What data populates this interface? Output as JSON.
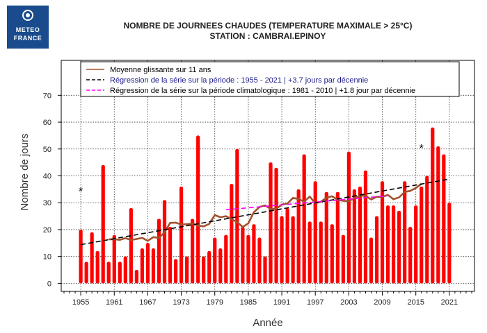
{
  "logo": {
    "line1": "METEO",
    "line2": "FRANCE",
    "color": "#1a4b8c"
  },
  "header": {
    "title_line1": "NOMBRE DE JOURNEES CHAUDES (TEMPERATURE MAXIMALE > 25°C)",
    "title_line2": "STATION : CAMBRAI.EPINOY"
  },
  "chart_data": {
    "type": "bar",
    "xlabel": "Année",
    "ylabel": "Nombre de jours",
    "ylim": [
      -3,
      83
    ],
    "yticks": [
      0,
      10,
      20,
      30,
      40,
      50,
      60,
      70
    ],
    "xticks": [
      1955,
      1961,
      1967,
      1973,
      1979,
      1985,
      1991,
      1997,
      2003,
      2009,
      2015,
      2021
    ],
    "grid": true,
    "legend_position": "top",
    "x": [
      1955,
      1956,
      1957,
      1958,
      1959,
      1960,
      1961,
      1962,
      1963,
      1964,
      1965,
      1966,
      1967,
      1968,
      1969,
      1970,
      1971,
      1972,
      1973,
      1974,
      1975,
      1976,
      1977,
      1978,
      1979,
      1980,
      1981,
      1982,
      1983,
      1984,
      1985,
      1986,
      1987,
      1988,
      1989,
      1990,
      1991,
      1992,
      1993,
      1994,
      1995,
      1996,
      1997,
      1998,
      1999,
      2000,
      2001,
      2002,
      2003,
      2004,
      2005,
      2006,
      2007,
      2008,
      2009,
      2010,
      2011,
      2012,
      2013,
      2014,
      2015,
      2016,
      2017,
      2018,
      2019,
      2020,
      2021
    ],
    "series": [
      {
        "name": "Nombre de journées chaudes",
        "color": "#ff0000",
        "values": [
          20,
          8,
          19,
          12,
          44,
          8,
          18,
          8,
          10,
          28,
          5,
          13,
          15,
          13,
          24,
          31,
          21,
          9,
          36,
          10,
          24,
          55,
          10,
          12,
          17,
          13,
          18,
          37,
          50,
          21,
          18,
          22,
          17,
          10,
          45,
          43,
          25,
          28,
          25,
          35,
          48,
          23,
          38,
          23,
          34,
          22,
          34,
          18,
          49,
          35,
          36,
          42,
          17,
          25,
          38,
          29,
          29,
          27,
          38,
          21,
          29,
          36,
          40,
          58,
          51,
          48,
          30
        ]
      },
      {
        "name": "Moyenne glissante sur 11 ans",
        "color": "#a0522d",
        "values": [
          null,
          null,
          null,
          null,
          null,
          16.4,
          16.4,
          16.2,
          16.8,
          16.1,
          16.5,
          16.9,
          15.8,
          17.2,
          16.9,
          19.0,
          22.5,
          22.6,
          21.9,
          22.0,
          22.2,
          21.5,
          21.2,
          22.1,
          25.4,
          24.6,
          25.0,
          23.9,
          22.8,
          21.0,
          22.3,
          26.5,
          28.4,
          29.0,
          27.7,
          27.7,
          29.3,
          29.7,
          31.8,
          31.4,
          30.4,
          32.3,
          29.8,
          30.4,
          31.9,
          32.4,
          31.1,
          30.7,
          30.6,
          31.7,
          32.6,
          32.6,
          31.2,
          32.2,
          32.2,
          32.9,
          31.3,
          32.0,
          34.0,
          34.4,
          35.5,
          37.0,
          null,
          null,
          null,
          null,
          null
        ]
      },
      {
        "name": "Régression de la série sur la période : 1955 - 2021 | +3.7 jours par décennie",
        "color": "#000000",
        "x_range": [
          1955,
          2021
        ],
        "y_range": [
          14.4,
          38.8
        ]
      },
      {
        "name": "Régression de la série sur la période climatologique : 1981 - 2010 | +1.8 jour par décennie",
        "color": "#ff00ff",
        "x_range": [
          1981,
          2010
        ],
        "y_range": [
          27.4,
          32.6
        ]
      }
    ],
    "annotations": [
      {
        "text": "*",
        "x": 1955,
        "y": 34.5
      },
      {
        "text": "*",
        "x": 2016,
        "y": 50.5
      }
    ]
  }
}
